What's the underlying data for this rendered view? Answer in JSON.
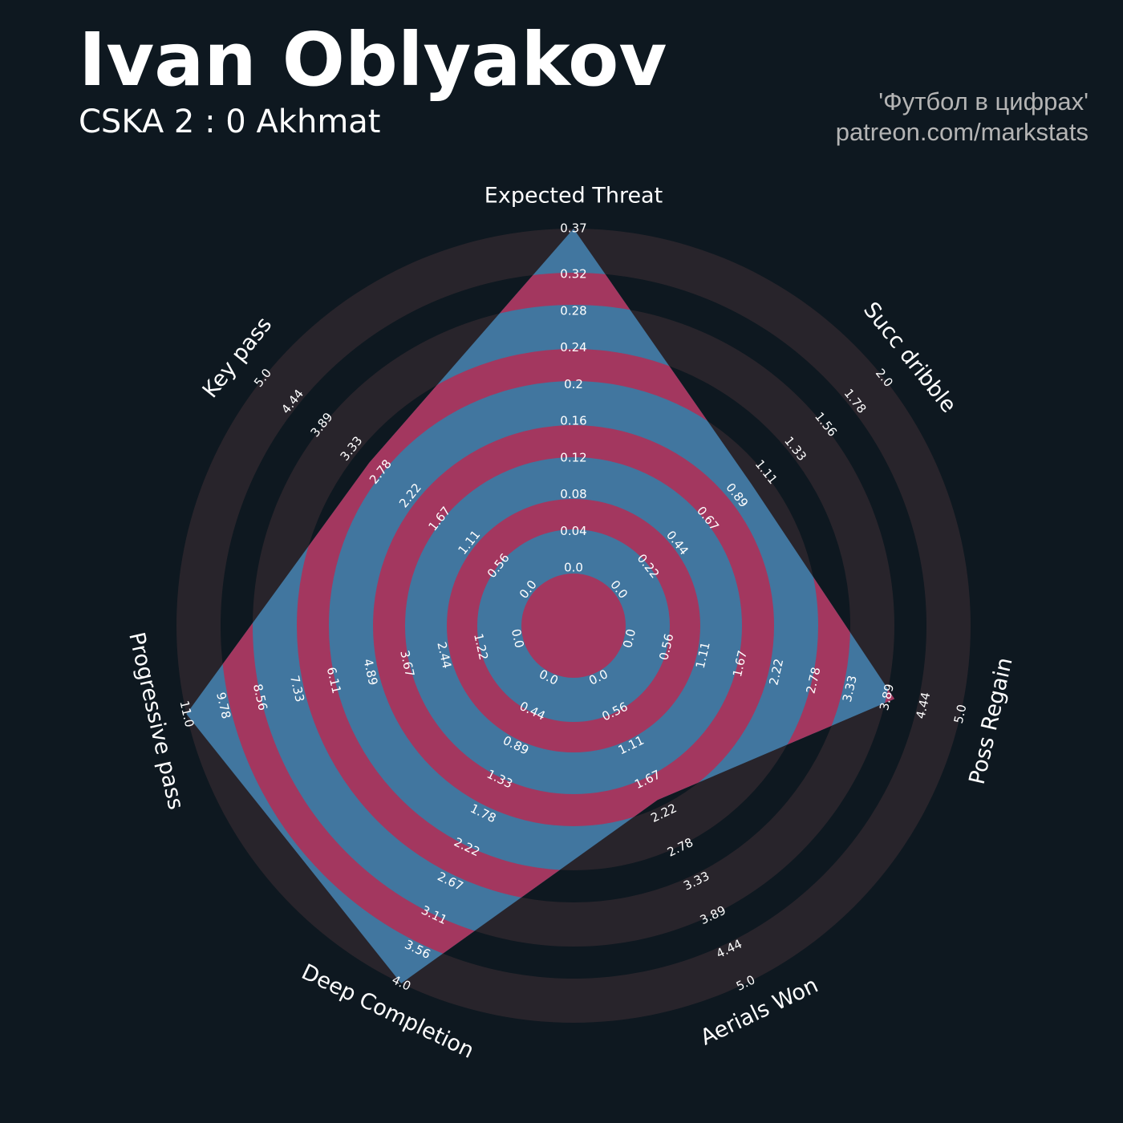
{
  "chart_data": {
    "type": "radar",
    "title": "Ivan Oblyakov",
    "subtitle": "CSKA 2 : 0 Akhmat",
    "credits": [
      "'Футбол в цифрах'",
      "patreon.com/markstats"
    ],
    "categories": [
      "Expected Threat",
      "Succ dribble",
      "Poss Regain",
      "Aerials Won",
      "Deep Completion",
      "Progressive pass",
      "Key pass"
    ],
    "values": [
      0.37,
      1,
      4,
      2,
      4,
      11,
      3
    ],
    "color": "#41769f",
    "ring_colors": [
      "#a3375f",
      "#28242b"
    ],
    "lims": [
      [
        0,
        0.37
      ],
      [
        0,
        2
      ],
      [
        0,
        5
      ],
      [
        0,
        5
      ],
      [
        0,
        4
      ],
      [
        0,
        11
      ],
      [
        0,
        5
      ]
    ],
    "ticks": [
      [
        {
          "value": 0,
          "label": "0.0"
        },
        0.04,
        0.08,
        0.12,
        0.16,
        0.2,
        0.24,
        0.28,
        0.32,
        0.37
      ],
      [
        {
          "value": 0,
          "label": "0.0"
        },
        0.22,
        0.44,
        0.67,
        0.89,
        1.11,
        1.33,
        1.56,
        1.78,
        {
          "value": 2,
          "label": "2.0"
        }
      ],
      [
        {
          "value": 0,
          "label": "0.0"
        },
        0.56,
        1.11,
        1.67,
        2.22,
        2.78,
        3.33,
        3.89,
        4.44,
        {
          "value": 5,
          "label": "5.0"
        }
      ],
      [
        {
          "value": 0,
          "label": "0.0"
        },
        0.56,
        1.11,
        1.67,
        2.22,
        2.78,
        3.33,
        3.89,
        4.44,
        {
          "value": 5,
          "label": "5.0"
        }
      ],
      [
        {
          "value": 0,
          "label": "0.0"
        },
        0.44,
        0.89,
        1.33,
        1.78,
        2.22,
        2.67,
        3.11,
        3.56,
        {
          "value": 4,
          "label": "4.0"
        }
      ],
      [
        {
          "value": 0,
          "label": "0.0"
        },
        1.22,
        2.44,
        3.67,
        4.89,
        6.11,
        7.33,
        8.56,
        9.78,
        {
          "value": 11,
          "label": "11.0"
        }
      ],
      [
        {
          "value": 0,
          "label": "0.0"
        },
        0.56,
        1.11,
        1.67,
        2.22,
        2.78,
        3.33,
        3.89,
        4.44,
        {
          "value": 5,
          "label": "5.0"
        }
      ]
    ]
  }
}
